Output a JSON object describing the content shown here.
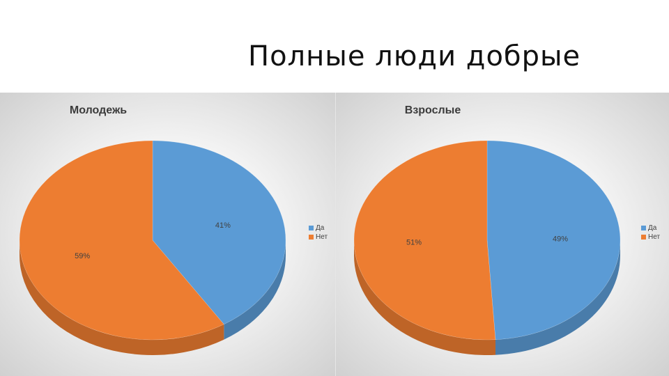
{
  "slide": {
    "title": "Полные люди добрые"
  },
  "chart_data": [
    {
      "type": "pie",
      "title": "Молодежь",
      "categories": [
        "Да",
        "Нет"
      ],
      "values": [
        41,
        59
      ],
      "data_labels": [
        "41%",
        "59%"
      ],
      "colors": [
        "#5b9bd5",
        "#ed7d31"
      ],
      "legend": "right"
    },
    {
      "type": "pie",
      "title": "Взрослые",
      "categories": [
        "Да",
        "Нет"
      ],
      "values": [
        49,
        51
      ],
      "data_labels": [
        "49%",
        "51%"
      ],
      "colors": [
        "#5b9bd5",
        "#ed7d31"
      ],
      "legend": "right"
    }
  ]
}
